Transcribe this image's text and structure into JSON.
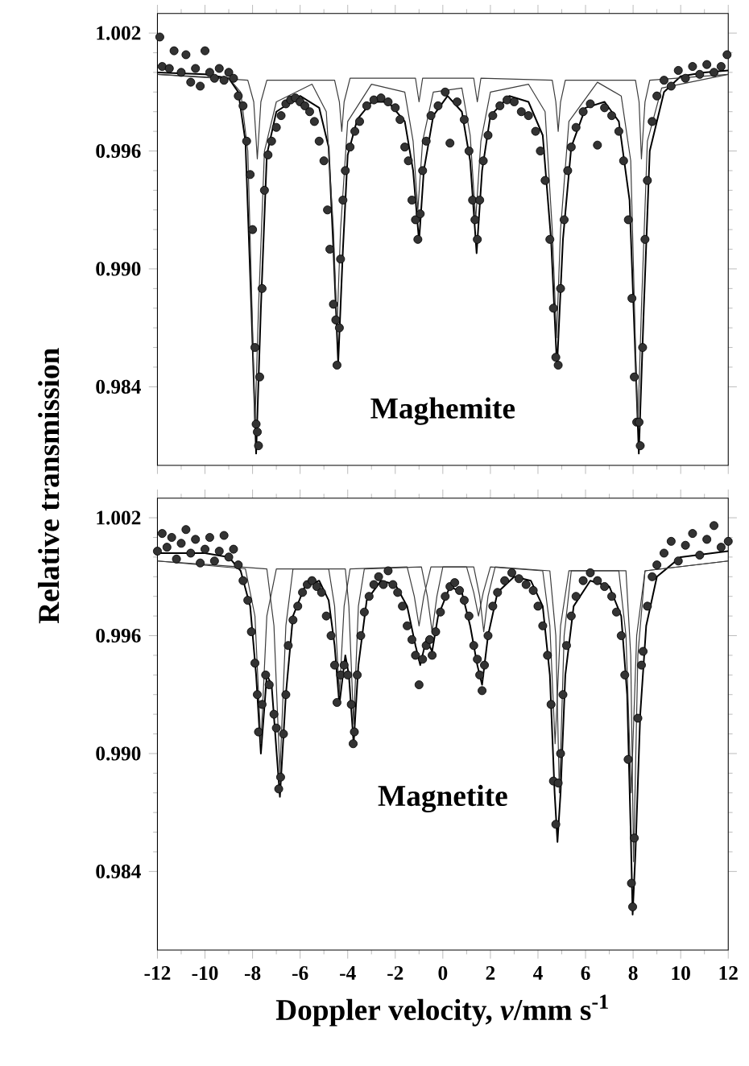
{
  "chart_data": [
    {
      "type": "scatter",
      "ylabel": "Relative transmission",
      "annotations": [
        "Maghemite"
      ],
      "xlim": [
        -12,
        12
      ],
      "ylim": [
        0.98,
        1.003
      ],
      "xticks": [
        -12,
        -10,
        -8,
        -6,
        -4,
        -2,
        0,
        2,
        4,
        6,
        8,
        10,
        12
      ],
      "yticks": [
        0.984,
        {
          "value": 0.99,
          "label": "0.990"
        },
        0.996,
        1.002
      ],
      "tick_labels": "y",
      "series": [
        {
          "type": "scatter",
          "marker": "circle",
          "color": "#333333",
          "x": [
            -11.9,
            -11.8,
            -11.5,
            -11.3,
            -11.0,
            -10.8,
            -10.6,
            -10.4,
            -10.2,
            -10.0,
            -9.8,
            -9.6,
            -9.4,
            -9.2,
            -9.0,
            -8.8,
            -8.6,
            -8.4,
            -8.25,
            -8.1,
            -8.0,
            -7.9,
            -7.85,
            -7.8,
            -7.75,
            -7.7,
            -7.6,
            -7.5,
            -7.35,
            -7.2,
            -7.0,
            -6.8,
            -6.6,
            -6.4,
            -6.2,
            -6.0,
            -5.8,
            -5.6,
            -5.4,
            -5.2,
            -5.0,
            -4.85,
            -4.75,
            -4.6,
            -4.5,
            -4.45,
            -4.35,
            -4.3,
            -4.2,
            -4.1,
            -3.9,
            -3.7,
            -3.5,
            -3.2,
            -2.9,
            -2.6,
            -2.3,
            -2.0,
            -1.8,
            -1.6,
            -1.45,
            -1.3,
            -1.15,
            -1.05,
            -0.95,
            -0.85,
            -0.7,
            -0.5,
            -0.2,
            0.1,
            0.3,
            0.6,
            0.9,
            1.1,
            1.25,
            1.35,
            1.45,
            1.55,
            1.7,
            1.9,
            2.1,
            2.4,
            2.7,
            3.0,
            3.3,
            3.6,
            3.9,
            4.1,
            4.3,
            4.5,
            4.65,
            4.75,
            4.85,
            4.95,
            5.1,
            5.25,
            5.4,
            5.6,
            5.9,
            6.2,
            6.5,
            6.8,
            7.1,
            7.4,
            7.6,
            7.8,
            7.95,
            8.05,
            8.15,
            8.25,
            8.3,
            8.4,
            8.5,
            8.6,
            8.8,
            9.0,
            9.3,
            9.6,
            9.9,
            10.2,
            10.5,
            10.8,
            11.1,
            11.4,
            11.7,
            11.95
          ],
          "values": [
            1.0018,
            1.0003,
            1.0002,
            1.0011,
            1.0,
            1.0009,
            0.9995,
            1.0002,
            0.9993,
            1.0011,
            1.0,
            0.9997,
            1.0002,
            0.9996,
            1.0,
            0.9997,
            0.9988,
            0.9983,
            0.9965,
            0.9948,
            0.992,
            0.986,
            0.9821,
            0.9817,
            0.981,
            0.9845,
            0.989,
            0.994,
            0.9958,
            0.9965,
            0.9972,
            0.9978,
            0.9984,
            0.9986,
            0.9987,
            0.9985,
            0.9983,
            0.998,
            0.9975,
            0.9965,
            0.9955,
            0.993,
            0.991,
            0.9882,
            0.9874,
            0.9851,
            0.987,
            0.9905,
            0.9935,
            0.995,
            0.9962,
            0.997,
            0.9975,
            0.9983,
            0.9986,
            0.9987,
            0.9985,
            0.9982,
            0.9976,
            0.9962,
            0.9955,
            0.9935,
            0.9925,
            0.9915,
            0.9928,
            0.995,
            0.9965,
            0.9978,
            0.9983,
            0.999,
            0.9964,
            0.9985,
            0.9976,
            0.996,
            0.9935,
            0.9925,
            0.9915,
            0.9935,
            0.9955,
            0.9968,
            0.9978,
            0.9983,
            0.9986,
            0.9985,
            0.998,
            0.9978,
            0.997,
            0.996,
            0.9945,
            0.9915,
            0.988,
            0.9855,
            0.9851,
            0.989,
            0.9925,
            0.995,
            0.9962,
            0.9972,
            0.998,
            0.9984,
            0.9963,
            0.9982,
            0.9978,
            0.997,
            0.9955,
            0.9925,
            0.9885,
            0.9845,
            0.9822,
            0.9822,
            0.981,
            0.986,
            0.9915,
            0.9945,
            0.9975,
            0.9988,
            0.9996,
            0.9993,
            1.0001,
            0.9997,
            1.0003,
            0.9999,
            1.0004,
            1.0,
            1.0003,
            1.0009
          ]
        },
        {
          "type": "line",
          "color": "#000000",
          "x": [
            -12,
            -10,
            -9,
            -8.6,
            -8.3,
            -8.05,
            -7.85,
            -7.65,
            -7.4,
            -7.0,
            -6.0,
            -5.2,
            -4.8,
            -4.6,
            -4.4,
            -4.2,
            -4.0,
            -3.6,
            -3.0,
            -2.3,
            -1.6,
            -1.25,
            -1.0,
            -0.8,
            -0.4,
            0.2,
            0.8,
            1.15,
            1.42,
            1.65,
            2.0,
            2.8,
            3.6,
            4.2,
            4.55,
            4.8,
            5.05,
            5.4,
            6.0,
            6.8,
            7.4,
            7.85,
            8.05,
            8.24,
            8.45,
            8.7,
            9.3,
            10,
            11,
            12
          ],
          "values": [
            1.0,
            0.9999,
            0.9997,
            0.999,
            0.9965,
            0.988,
            0.9806,
            0.988,
            0.9958,
            0.998,
            0.9988,
            0.9982,
            0.9962,
            0.991,
            0.9852,
            0.991,
            0.9958,
            0.9976,
            0.9985,
            0.9985,
            0.9975,
            0.995,
            0.9914,
            0.995,
            0.9978,
            0.9988,
            0.998,
            0.9955,
            0.9908,
            0.995,
            0.9978,
            0.9988,
            0.9985,
            0.9968,
            0.9915,
            0.985,
            0.9915,
            0.9962,
            0.9982,
            0.9985,
            0.9975,
            0.9935,
            0.987,
            0.9806,
            0.988,
            0.996,
            0.999,
            0.9998,
            1.0,
            1.0001
          ]
        },
        {
          "type": "line",
          "color": "#3c3c3c",
          "x": [
            -12,
            -9,
            -8.5,
            -8.2,
            -8.0,
            -7.9,
            -7.75,
            -7.5,
            -7,
            -5.5,
            -4.9,
            -4.6,
            -4.45,
            -4.3,
            -4.0,
            -3,
            -1.6,
            -1.25,
            -1.05,
            -0.85,
            -0.4,
            0.8,
            1.15,
            1.38,
            1.6,
            2.0,
            3.6,
            4.3,
            4.6,
            4.78,
            4.95,
            5.3,
            6.5,
            7.5,
            7.9,
            8.08,
            8.2,
            8.35,
            8.6,
            9.2,
            12
          ],
          "values": [
            0.9999,
            0.9997,
            0.999,
            0.996,
            0.987,
            0.982,
            0.988,
            0.996,
            0.9985,
            0.9994,
            0.998,
            0.992,
            0.987,
            0.992,
            0.9975,
            0.9994,
            0.999,
            0.9965,
            0.993,
            0.9965,
            0.999,
            0.9992,
            0.9968,
            0.9925,
            0.9965,
            0.999,
            0.9994,
            0.998,
            0.992,
            0.9865,
            0.992,
            0.9975,
            0.9995,
            0.9988,
            0.9955,
            0.987,
            0.982,
            0.988,
            0.9965,
            0.9992,
            0.9999
          ]
        },
        {
          "type": "line",
          "color": "#3c3c3c",
          "x": [
            -12,
            -8.2,
            -7.95,
            -7.8,
            -7.65,
            -7.4,
            -4.55,
            -4.35,
            -4.25,
            -4.15,
            -3.9,
            -1.15,
            -1.0,
            -0.85,
            1.3,
            1.45,
            1.6,
            4.6,
            4.75,
            4.85,
            4.95,
            5.15,
            8.1,
            8.25,
            8.35,
            8.5,
            8.7,
            12
          ],
          "values": [
            0.9999,
            0.9996,
            0.9985,
            0.9956,
            0.9985,
            0.9996,
            0.9996,
            0.9985,
            0.997,
            0.9985,
            0.9997,
            0.9997,
            0.9985,
            0.9997,
            0.9997,
            0.9985,
            0.9997,
            0.9996,
            0.9985,
            0.997,
            0.9985,
            0.9996,
            0.9996,
            0.9985,
            0.9956,
            0.9985,
            0.9996,
            0.9999
          ]
        }
      ]
    },
    {
      "type": "scatter",
      "xlabel": "Doppler velocity, *v*/mm s$^{-1}$",
      "annotations": [
        "Magnetite"
      ],
      "xlim": [
        -12,
        12
      ],
      "ylim": [
        0.98,
        1.003
      ],
      "xticks": [
        -12,
        -10,
        -8,
        -6,
        -4,
        -2,
        0,
        2,
        4,
        6,
        8,
        10,
        12
      ],
      "yticks": [
        0.984,
        {
          "value": 0.99,
          "label": "0.990"
        },
        0.996,
        1.002
      ],
      "series": [
        {
          "type": "scatter",
          "marker": "circle",
          "color": "#333333",
          "x": [
            -12.0,
            -11.8,
            -11.6,
            -11.4,
            -11.2,
            -11.0,
            -10.8,
            -10.6,
            -10.4,
            -10.2,
            -10.0,
            -9.8,
            -9.6,
            -9.4,
            -9.2,
            -9.0,
            -8.8,
            -8.6,
            -8.4,
            -8.2,
            -8.05,
            -7.9,
            -7.8,
            -7.75,
            -7.6,
            -7.45,
            -7.3,
            -7.1,
            -7.0,
            -6.9,
            -6.82,
            -6.7,
            -6.6,
            -6.5,
            -6.3,
            -6.1,
            -5.9,
            -5.7,
            -5.5,
            -5.3,
            -5.1,
            -4.9,
            -4.7,
            -4.55,
            -4.45,
            -4.3,
            -4.15,
            -4.0,
            -3.85,
            -3.77,
            -3.72,
            -3.6,
            -3.45,
            -3.3,
            -3.1,
            -2.9,
            -2.7,
            -2.5,
            -2.3,
            -2.1,
            -1.9,
            -1.7,
            -1.5,
            -1.3,
            -1.15,
            -1.0,
            -0.85,
            -0.7,
            -0.55,
            -0.45,
            -0.3,
            -0.1,
            0.1,
            0.3,
            0.5,
            0.7,
            0.9,
            1.1,
            1.3,
            1.45,
            1.55,
            1.65,
            1.75,
            1.9,
            2.1,
            2.3,
            2.6,
            2.9,
            3.2,
            3.5,
            3.8,
            4.0,
            4.2,
            4.4,
            4.55,
            4.65,
            4.75,
            4.85,
            4.95,
            5.05,
            5.2,
            5.4,
            5.6,
            5.9,
            6.2,
            6.5,
            6.8,
            7.1,
            7.3,
            7.5,
            7.65,
            7.79,
            7.93,
            7.98,
            8.05,
            8.2,
            8.35,
            8.42,
            8.6,
            8.8,
            9.0,
            9.3,
            9.6,
            9.9,
            10.2,
            10.5,
            10.8,
            11.1,
            11.4,
            11.7,
            12.0
          ],
          "values": [
            1.0003,
            1.0012,
            1.0005,
            1.001,
            0.9999,
            1.0007,
            1.0014,
            1.0002,
            1.0009,
            0.9997,
            1.0004,
            1.001,
            0.9998,
            1.0003,
            1.0011,
            1.0,
            1.0004,
            0.9996,
            0.9988,
            0.9978,
            0.9962,
            0.9946,
            0.993,
            0.9911,
            0.9925,
            0.994,
            0.9935,
            0.992,
            0.9913,
            0.9882,
            0.9888,
            0.991,
            0.993,
            0.9955,
            0.9968,
            0.9975,
            0.9982,
            0.9986,
            0.9988,
            0.9985,
            0.9982,
            0.997,
            0.996,
            0.9945,
            0.9926,
            0.994,
            0.9945,
            0.994,
            0.9925,
            0.9905,
            0.9911,
            0.994,
            0.996,
            0.9972,
            0.998,
            0.9986,
            0.999,
            0.9986,
            0.9993,
            0.9986,
            0.9982,
            0.9975,
            0.9965,
            0.9958,
            0.995,
            0.9935,
            0.9948,
            0.9955,
            0.9958,
            0.995,
            0.9962,
            0.9972,
            0.998,
            0.9985,
            0.9987,
            0.9983,
            0.9978,
            0.997,
            0.9955,
            0.9948,
            0.994,
            0.9932,
            0.9945,
            0.996,
            0.9975,
            0.9982,
            0.9988,
            0.9992,
            0.9989,
            0.9986,
            0.9983,
            0.9975,
            0.9965,
            0.995,
            0.9925,
            0.9886,
            0.9864,
            0.9885,
            0.99,
            0.993,
            0.9955,
            0.997,
            0.998,
            0.9988,
            0.9992,
            0.9988,
            0.9985,
            0.998,
            0.9972,
            0.996,
            0.994,
            0.9897,
            0.9834,
            0.9822,
            0.9857,
            0.9918,
            0.9945,
            0.9952,
            0.9975,
            0.999,
            0.9996,
            1.0002,
            1.0008,
            0.9998,
            1.0006,
            1.0012,
            1.0001,
            1.0009,
            1.0016,
            1.0005,
            1.0008
          ]
        },
        {
          "type": "line",
          "color": "#000000",
          "x": [
            -12,
            -10,
            -9,
            -8.5,
            -8.1,
            -7.85,
            -7.65,
            -7.4,
            -7.2,
            -6.85,
            -6.6,
            -6.3,
            -5.8,
            -5.2,
            -4.8,
            -4.55,
            -4.35,
            -4.1,
            -3.95,
            -3.75,
            -3.55,
            -3.2,
            -2.6,
            -2.0,
            -1.5,
            -1.15,
            -0.95,
            -0.7,
            -0.45,
            -0.2,
            0.3,
            0.8,
            1.15,
            1.45,
            1.65,
            1.9,
            2.3,
            3.0,
            3.7,
            4.2,
            4.5,
            4.7,
            4.82,
            4.95,
            5.15,
            5.5,
            6.2,
            7.0,
            7.5,
            7.75,
            7.9,
            7.98,
            8.1,
            8.3,
            8.55,
            9.0,
            10,
            12
          ],
          "values": [
            1.0002,
            1.0002,
            1.0,
            0.9993,
            0.9975,
            0.994,
            0.99,
            0.994,
            0.9935,
            0.9878,
            0.993,
            0.997,
            0.9985,
            0.9988,
            0.9978,
            0.9955,
            0.9925,
            0.995,
            0.994,
            0.9905,
            0.9945,
            0.9978,
            0.9988,
            0.9986,
            0.9975,
            0.9955,
            0.9945,
            0.9958,
            0.9952,
            0.997,
            0.9985,
            0.9982,
            0.9965,
            0.9945,
            0.9935,
            0.996,
            0.9982,
            0.999,
            0.9988,
            0.9975,
            0.994,
            0.988,
            0.9855,
            0.988,
            0.994,
            0.9975,
            0.9988,
            0.9985,
            0.997,
            0.993,
            0.986,
            0.9818,
            0.985,
            0.992,
            0.9965,
            0.999,
            1.0,
            1.0003
          ]
        },
        {
          "type": "line",
          "color": "#3c3c3c",
          "x": [
            -12,
            -8.3,
            -7.9,
            -7.65,
            -7.4,
            -7.0,
            -4.8,
            -4.55,
            -4.35,
            -4.15,
            -3.9,
            -1.5,
            -1.2,
            -1.0,
            -0.8,
            -0.5,
            1.0,
            1.3,
            1.5,
            1.7,
            2.0,
            4.2,
            4.5,
            4.72,
            4.95,
            5.3,
            7.4,
            7.7,
            7.92,
            8.15,
            8.5,
            12
          ],
          "values": [
            0.9998,
            0.9994,
            0.997,
            0.9905,
            0.997,
            0.9994,
            0.9994,
            0.9975,
            0.993,
            0.9975,
            0.9994,
            0.9995,
            0.998,
            0.9965,
            0.998,
            0.9995,
            0.9995,
            0.9982,
            0.997,
            0.9982,
            0.9995,
            0.9993,
            0.9965,
            0.9905,
            0.9965,
            0.9993,
            0.9993,
            0.996,
            0.988,
            0.996,
            0.9993,
            0.9998
          ]
        },
        {
          "type": "line",
          "color": "#3c3c3c",
          "x": [
            -12,
            -7.4,
            -7.1,
            -6.85,
            -6.6,
            -6.3,
            -4.1,
            -3.95,
            -3.75,
            -3.55,
            -3.3,
            -0.9,
            -0.65,
            -0.45,
            -0.25,
            0.0,
            1.3,
            1.55,
            1.72,
            1.9,
            2.2,
            4.5,
            4.75,
            4.9,
            5.1,
            5.4,
            7.7,
            7.9,
            8.02,
            8.2,
            8.5,
            12
          ],
          "values": [
            0.9998,
            0.9994,
            0.9965,
            0.989,
            0.9965,
            0.9994,
            0.9994,
            0.9975,
            0.9915,
            0.9975,
            0.9994,
            0.9995,
            0.998,
            0.9962,
            0.998,
            0.9995,
            0.9995,
            0.998,
            0.9962,
            0.998,
            0.9995,
            0.9993,
            0.996,
            0.988,
            0.996,
            0.9993,
            0.9993,
            0.995,
            0.9845,
            0.995,
            0.9993,
            0.9998
          ]
        }
      ]
    }
  ]
}
